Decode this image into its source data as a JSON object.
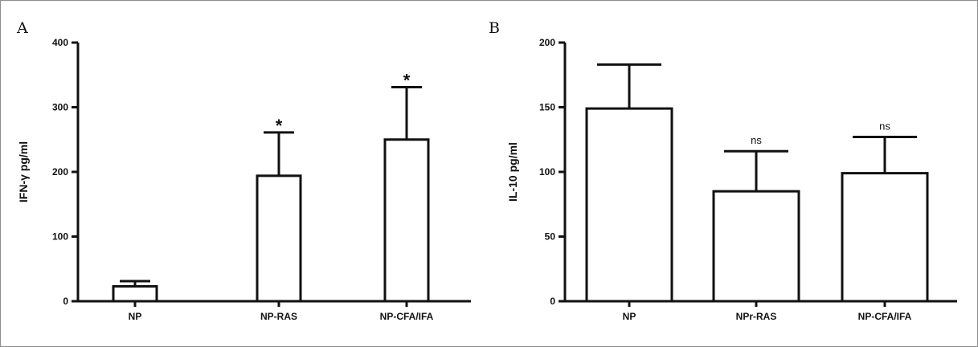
{
  "chart_data": [
    {
      "type": "bar",
      "panel": "A",
      "ylabel": "IFN-γ pg/ml",
      "ylim": [
        0,
        400
      ],
      "yticks": [
        0,
        100,
        200,
        300,
        400
      ],
      "categories": [
        "NP",
        "NP-RAS",
        "NP-CFA/IFA"
      ],
      "values": [
        23,
        194,
        250
      ],
      "error_upper": [
        31,
        261,
        331
      ],
      "annotations": [
        "",
        "*",
        "*"
      ],
      "grid": false,
      "bar_fill": "#ffffff",
      "bar_stroke": "#111111"
    },
    {
      "type": "bar",
      "panel": "B",
      "ylabel": "IL-10 pg/ml",
      "ylim": [
        0,
        200
      ],
      "yticks": [
        0,
        50,
        100,
        150,
        200
      ],
      "categories": [
        "NP",
        "NPr-RAS",
        "NP-CFA/IFA"
      ],
      "values": [
        149,
        85,
        99
      ],
      "error_upper": [
        183,
        116,
        127
      ],
      "annotations": [
        "",
        "ns",
        "ns"
      ],
      "grid": false,
      "bar_fill": "#ffffff",
      "bar_stroke": "#111111"
    }
  ]
}
